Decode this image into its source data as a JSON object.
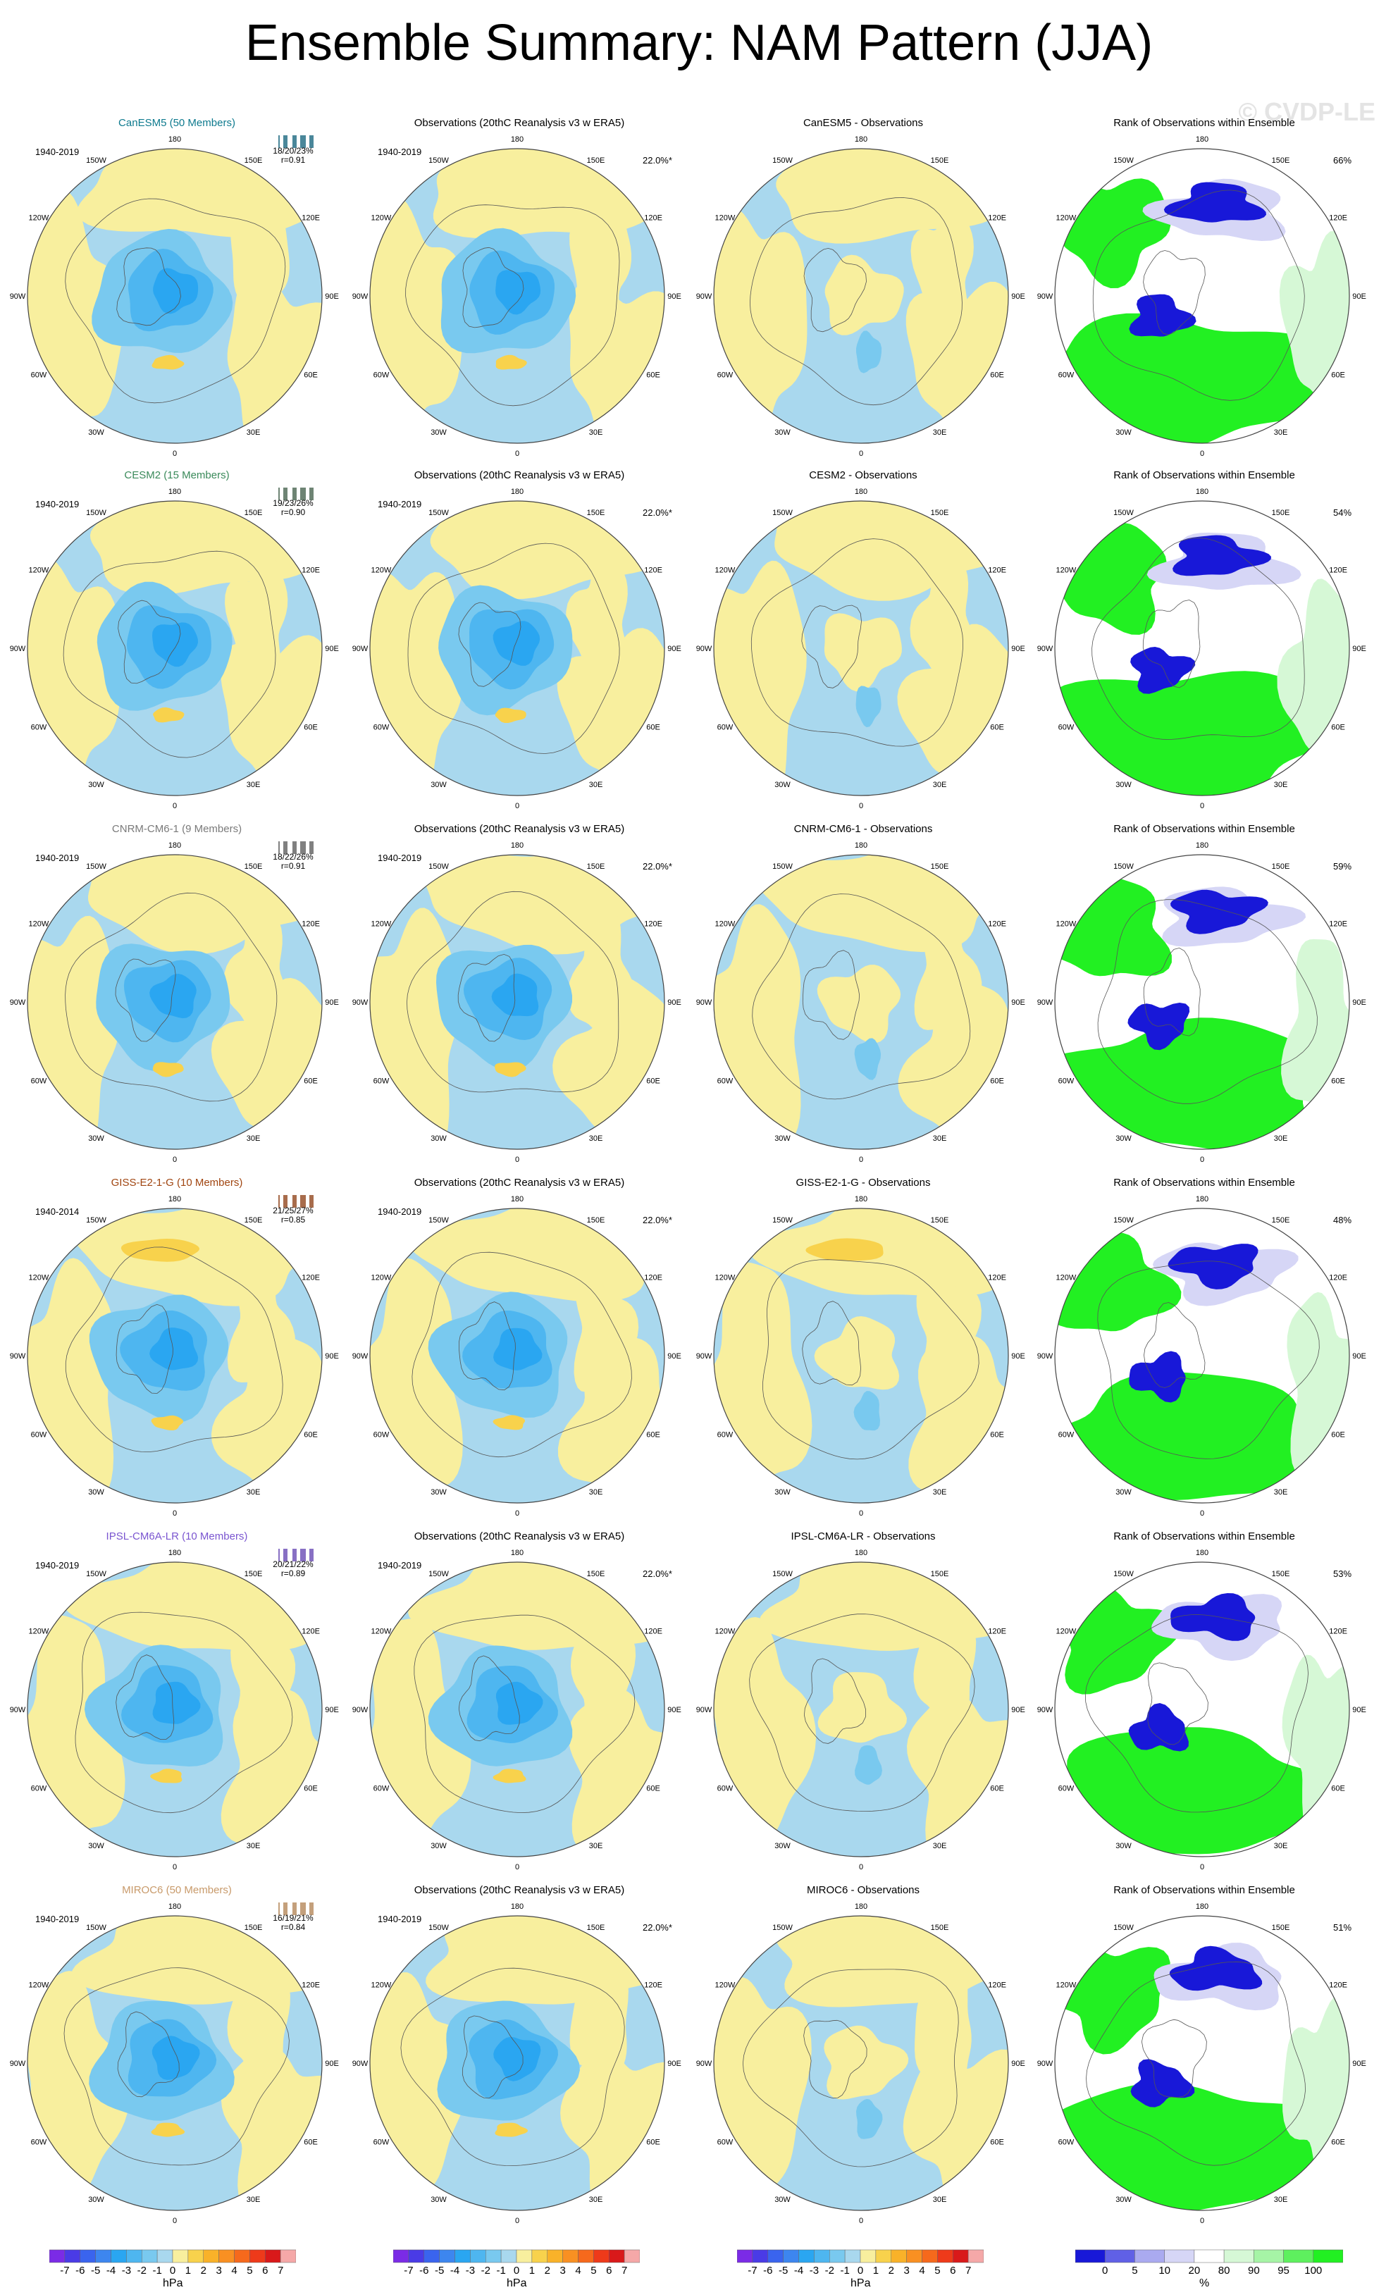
{
  "title": "Ensemble Summary: NAM Pattern (JJA)",
  "watermark": "© CVDP-LE",
  "map_lon_labels": [
    "180",
    "150E",
    "120E",
    "90E",
    "60E",
    "30E",
    "0",
    "30W",
    "60W",
    "90W",
    "120W",
    "150W"
  ],
  "colors": {
    "ocean_blue": "#a9d8ee",
    "neg_1": "#79c9ef",
    "neg_2": "#4eb6f0",
    "neg_3": "#2aa6f1",
    "pos_light": "#f8ef9e",
    "pos_1": "#f8d24c",
    "pos_2": "#f9b229",
    "rank_green": "#22f022",
    "rank_blue": "#1818d8",
    "rank_lightblue": "#d6d6f6",
    "rank_lightgreen": "#d6f8d6",
    "outline": "#444444"
  },
  "rows": [
    {
      "model": "CanESM5 (50 Members)",
      "model_color": "#0e7a8e",
      "model_short": "CanESM5",
      "period_model": "1940-2019",
      "period_obs": "1940-2019",
      "stats": "18/20/23%",
      "corr": "r=0.91",
      "obs_pct": "22.0%*",
      "rank_pct": "66%",
      "spread_color": "#0e5f78"
    },
    {
      "model": "CESM2 (15 Members)",
      "model_color": "#3a8a5a",
      "model_short": "CESM2",
      "period_model": "1940-2019",
      "period_obs": "1940-2019",
      "stats": "19/23/26%",
      "corr": "r=0.90",
      "obs_pct": "22.0%*",
      "rank_pct": "54%",
      "spread_color": "#3d5a46"
    },
    {
      "model": "CNRM-CM6-1 (9 Members)",
      "model_color": "#7a7a7a",
      "model_short": "CNRM-CM6-1",
      "period_model": "1940-2019",
      "period_obs": "1940-2019",
      "stats": "18/22/26%",
      "corr": "r=0.91",
      "obs_pct": "22.0%*",
      "rank_pct": "59%",
      "spread_color": "#555555"
    },
    {
      "model": "GISS-E2-1-G (10 Members)",
      "model_color": "#a04510",
      "model_short": "GISS-E2-1-G",
      "period_model": "1940-2014",
      "period_obs": "1940-2019",
      "stats": "21/25/27%",
      "corr": "r=0.85",
      "obs_pct": "22.0%*",
      "rank_pct": "48%",
      "spread_color": "#8a3a10"
    },
    {
      "model": "IPSL-CM6A-LR (10 Members)",
      "model_color": "#7a55d0",
      "model_short": "IPSL-CM6A-LR",
      "period_model": "1940-2019",
      "period_obs": "1940-2019",
      "stats": "20/21/22%",
      "corr": "r=0.89",
      "obs_pct": "22.0%*",
      "rank_pct": "53%",
      "spread_color": "#6040b0"
    },
    {
      "model": "MIROC6 (50 Members)",
      "model_color": "#c89a6a",
      "model_short": "MIROC6",
      "period_model": "1940-2019",
      "period_obs": "1940-2019",
      "stats": "16/19/21%",
      "corr": "r=0.84",
      "obs_pct": "22.0%*",
      "rank_pct": "51%",
      "spread_color": "#b08050"
    }
  ],
  "column_titles": {
    "obs": "Observations (20thC Reanalysis v3 w ERA5)",
    "diff_suffix": " - Observations",
    "rank": "Rank of Observations within Ensemble"
  },
  "colorbars": {
    "hpa": {
      "labels": [
        "-7",
        "-6",
        "-5",
        "-4",
        "-3",
        "-2",
        "-1",
        "0",
        "1",
        "2",
        "3",
        "4",
        "5",
        "6",
        "7"
      ],
      "unit": "hPa",
      "colors": [
        "#7b2be6",
        "#4a3be6",
        "#3a64ee",
        "#3d86ef",
        "#2aa6f1",
        "#4eb6f0",
        "#79c9ef",
        "#a9d8ee",
        "#f8ef9e",
        "#f8d24c",
        "#f9b229",
        "#f99022",
        "#f6691c",
        "#ee3a1a",
        "#d9191a",
        "#f5a8a8"
      ]
    },
    "rank": {
      "labels": [
        "0",
        "5",
        "10",
        "20",
        "80",
        "90",
        "95",
        "100"
      ],
      "unit": "%",
      "colors": [
        "#1818d8",
        "#6060e6",
        "#aaaaf0",
        "#d6d6f6",
        "#ffffff",
        "#d6f8d6",
        "#a6f4a6",
        "#5ef05e",
        "#22f022"
      ]
    }
  },
  "chart_data": {
    "type": "heatmap",
    "title": "Ensemble Summary: NAM Pattern (JJA)",
    "panels_per_row": [
      "model ensemble mean",
      "Observations (20thC Reanalysis v3 w ERA5)",
      "model - Observations",
      "Rank of Observations within Ensemble"
    ],
    "models": [
      "CanESM5",
      "CESM2",
      "CNRM-CM6-1",
      "GISS-E2-1-G",
      "IPSL-CM6A-LR",
      "MIROC6"
    ],
    "members": [
      50,
      15,
      9,
      10,
      10,
      50
    ],
    "pct_variance_explained_min_mean_max": [
      [
        18,
        20,
        23
      ],
      [
        19,
        23,
        26
      ],
      [
        18,
        22,
        26
      ],
      [
        21,
        25,
        27
      ],
      [
        20,
        21,
        22
      ],
      [
        16,
        19,
        21
      ]
    ],
    "pattern_correlation": [
      0.91,
      0.9,
      0.91,
      0.85,
      0.89,
      0.84
    ],
    "obs_pct_variance": 22.0,
    "rank_pct": [
      66,
      54,
      59,
      48,
      53,
      51
    ],
    "contour_levels_hpa": [
      -7,
      -6,
      -5,
      -4,
      -3,
      -2,
      -1,
      0,
      1,
      2,
      3,
      4,
      5,
      6,
      7
    ],
    "rank_levels_pct": [
      0,
      5,
      10,
      20,
      80,
      90,
      95,
      100
    ]
  }
}
